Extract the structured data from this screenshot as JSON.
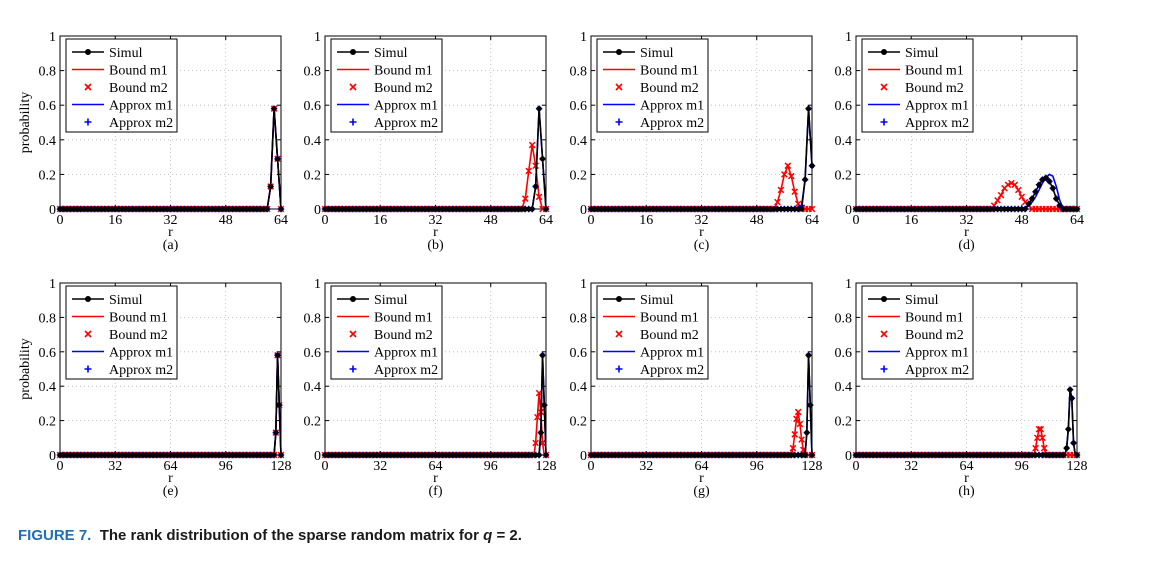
{
  "caption": {
    "label": "FIGURE 7.",
    "text": "The rank distribution of the sparse random matrix for",
    "q_symbol": "q",
    "q_rest": "= 2."
  },
  "ylabel": "probability",
  "xlabel": "r",
  "legend_entries": [
    {
      "label": "Simul",
      "color": "#000000",
      "style": "line-dot"
    },
    {
      "label": "Bound m1",
      "color": "#ff0000",
      "style": "line"
    },
    {
      "label": "Bound m2",
      "color": "#ff0000",
      "style": "x"
    },
    {
      "label": "Approx m1",
      "color": "#0000ff",
      "style": "line"
    },
    {
      "label": "Approx m2",
      "color": "#0000ff",
      "style": "plus"
    }
  ],
  "chart_data": [
    {
      "type": "line",
      "panel": "(a)",
      "xlim": [
        0,
        64
      ],
      "ylim": [
        0,
        1
      ],
      "xticks": [
        0,
        16,
        32,
        48,
        64
      ],
      "grid": true,
      "legend": "top-left",
      "series": [
        {
          "name": "Simul",
          "peaks": [
            [
              61,
              0.13
            ],
            [
              62,
              0.58
            ],
            [
              63,
              0.29
            ]
          ]
        },
        {
          "name": "Bound m1",
          "peaks": [
            [
              61,
              0.13
            ],
            [
              62,
              0.58
            ],
            [
              63,
              0.29
            ]
          ]
        },
        {
          "name": "Bound m2",
          "peaks": [
            [
              61,
              0.13
            ],
            [
              62,
              0.58
            ],
            [
              63,
              0.29
            ]
          ]
        },
        {
          "name": "Approx m1",
          "peaks": [
            [
              61,
              0.13
            ],
            [
              62,
              0.58
            ],
            [
              63,
              0.29
            ]
          ]
        },
        {
          "name": "Approx m2",
          "peaks": [
            [
              61,
              0.13
            ],
            [
              62,
              0.58
            ],
            [
              63,
              0.29
            ]
          ]
        }
      ]
    },
    {
      "type": "line",
      "panel": "(b)",
      "xlim": [
        0,
        64
      ],
      "ylim": [
        0,
        1
      ],
      "xticks": [
        0,
        16,
        32,
        48,
        64
      ],
      "grid": true,
      "legend": "top-left",
      "series": [
        {
          "name": "Simul",
          "peaks": [
            [
              61,
              0.13
            ],
            [
              62,
              0.58
            ],
            [
              63,
              0.29
            ]
          ]
        },
        {
          "name": "Bound m1",
          "peaks": [
            [
              58,
              0.06
            ],
            [
              59,
              0.22
            ],
            [
              60,
              0.37
            ],
            [
              61,
              0.25
            ],
            [
              62,
              0.07
            ]
          ]
        },
        {
          "name": "Bound m2",
          "peaks": [
            [
              58,
              0.06
            ],
            [
              59,
              0.22
            ],
            [
              60,
              0.37
            ],
            [
              61,
              0.25
            ],
            [
              62,
              0.07
            ]
          ]
        },
        {
          "name": "Approx m1",
          "peaks": [
            [
              61,
              0.13
            ],
            [
              62,
              0.58
            ],
            [
              63,
              0.29
            ]
          ]
        },
        {
          "name": "Approx m2",
          "peaks": [
            [
              61,
              0.13
            ],
            [
              62,
              0.58
            ],
            [
              63,
              0.29
            ]
          ]
        }
      ]
    },
    {
      "type": "line",
      "panel": "(c)",
      "xlim": [
        0,
        64
      ],
      "ylim": [
        0,
        1
      ],
      "xticks": [
        0,
        16,
        32,
        48,
        64
      ],
      "grid": true,
      "legend": "top-left",
      "series": [
        {
          "name": "Simul",
          "peaks": [
            [
              62,
              0.17
            ],
            [
              63,
              0.58
            ],
            [
              64,
              0.25
            ]
          ]
        },
        {
          "name": "Bound m1",
          "peaks": [
            [
              54,
              0.04
            ],
            [
              55,
              0.11
            ],
            [
              56,
              0.2
            ],
            [
              57,
              0.25
            ],
            [
              58,
              0.19
            ],
            [
              59,
              0.1
            ],
            [
              60,
              0.03
            ]
          ]
        },
        {
          "name": "Bound m2",
          "peaks": [
            [
              54,
              0.04
            ],
            [
              55,
              0.11
            ],
            [
              56,
              0.2
            ],
            [
              57,
              0.25
            ],
            [
              58,
              0.19
            ],
            [
              59,
              0.1
            ],
            [
              60,
              0.03
            ]
          ]
        },
        {
          "name": "Approx m1",
          "peaks": [
            [
              61,
              0.02
            ],
            [
              62,
              0.17
            ],
            [
              63,
              0.58
            ],
            [
              64,
              0.25
            ]
          ]
        },
        {
          "name": "Approx m2",
          "peaks": [
            [
              61,
              0.02
            ],
            [
              62,
              0.17
            ],
            [
              63,
              0.58
            ],
            [
              64,
              0.25
            ]
          ]
        }
      ]
    },
    {
      "type": "line",
      "panel": "(d)",
      "xlim": [
        0,
        64
      ],
      "ylim": [
        0,
        1
      ],
      "xticks": [
        0,
        16,
        32,
        48,
        64
      ],
      "grid": true,
      "legend": "top-left",
      "series": [
        {
          "name": "Simul",
          "peaks": [
            [
              50,
              0.03
            ],
            [
              51,
              0.06
            ],
            [
              52,
              0.1
            ],
            [
              53,
              0.14
            ],
            [
              54,
              0.17
            ],
            [
              55,
              0.18
            ],
            [
              56,
              0.16
            ],
            [
              57,
              0.12
            ],
            [
              58,
              0.06
            ],
            [
              59,
              0.02
            ]
          ]
        },
        {
          "name": "Bound m1",
          "peaks": [
            [
              40,
              0.02
            ],
            [
              41,
              0.05
            ],
            [
              42,
              0.08
            ],
            [
              43,
              0.12
            ],
            [
              44,
              0.14
            ],
            [
              45,
              0.15
            ],
            [
              46,
              0.14
            ],
            [
              47,
              0.11
            ],
            [
              48,
              0.07
            ],
            [
              49,
              0.04
            ],
            [
              50,
              0.02
            ]
          ]
        },
        {
          "name": "Bound m2",
          "peaks": [
            [
              40,
              0.02
            ],
            [
              41,
              0.05
            ],
            [
              42,
              0.08
            ],
            [
              43,
              0.12
            ],
            [
              44,
              0.14
            ],
            [
              45,
              0.15
            ],
            [
              46,
              0.14
            ],
            [
              47,
              0.11
            ],
            [
              48,
              0.07
            ],
            [
              49,
              0.04
            ],
            [
              50,
              0.02
            ]
          ]
        },
        {
          "name": "Approx m1",
          "peaks": [
            [
              50,
              0.02
            ],
            [
              51,
              0.04
            ],
            [
              52,
              0.07
            ],
            [
              53,
              0.11
            ],
            [
              54,
              0.15
            ],
            [
              55,
              0.18
            ],
            [
              56,
              0.2
            ],
            [
              57,
              0.19
            ],
            [
              58,
              0.13
            ],
            [
              59,
              0.05
            ]
          ]
        },
        {
          "name": "Approx m2",
          "peaks": [
            [
              50,
              0.03
            ],
            [
              51,
              0.06
            ],
            [
              52,
              0.1
            ],
            [
              53,
              0.14
            ],
            [
              54,
              0.17
            ],
            [
              55,
              0.18
            ],
            [
              56,
              0.16
            ],
            [
              57,
              0.12
            ],
            [
              58,
              0.06
            ],
            [
              59,
              0.02
            ]
          ]
        }
      ]
    },
    {
      "type": "line",
      "panel": "(e)",
      "xlim": [
        0,
        128
      ],
      "ylim": [
        0,
        1
      ],
      "xticks": [
        0,
        32,
        64,
        96,
        128
      ],
      "grid": true,
      "legend": "top-left",
      "series": [
        {
          "name": "Simul",
          "peaks": [
            [
              125,
              0.13
            ],
            [
              126,
              0.58
            ],
            [
              127,
              0.29
            ]
          ]
        },
        {
          "name": "Bound m1",
          "peaks": [
            [
              125,
              0.13
            ],
            [
              126,
              0.58
            ],
            [
              127,
              0.29
            ]
          ]
        },
        {
          "name": "Bound m2",
          "peaks": [
            [
              125,
              0.13
            ],
            [
              126,
              0.58
            ],
            [
              127,
              0.29
            ]
          ]
        },
        {
          "name": "Approx m1",
          "peaks": [
            [
              125,
              0.13
            ],
            [
              126,
              0.58
            ],
            [
              127,
              0.29
            ]
          ]
        },
        {
          "name": "Approx m2",
          "peaks": [
            [
              125,
              0.13
            ],
            [
              126,
              0.58
            ],
            [
              127,
              0.29
            ]
          ]
        }
      ]
    },
    {
      "type": "line",
      "panel": "(f)",
      "xlim": [
        0,
        128
      ],
      "ylim": [
        0,
        1
      ],
      "xticks": [
        0,
        32,
        64,
        96,
        128
      ],
      "grid": true,
      "legend": "top-left",
      "series": [
        {
          "name": "Simul",
          "peaks": [
            [
              125,
              0.13
            ],
            [
              126,
              0.58
            ],
            [
              127,
              0.29
            ]
          ]
        },
        {
          "name": "Bound m1",
          "peaks": [
            [
              122,
              0.07
            ],
            [
              123,
              0.22
            ],
            [
              124,
              0.36
            ],
            [
              125,
              0.25
            ],
            [
              126,
              0.07
            ]
          ]
        },
        {
          "name": "Bound m2",
          "peaks": [
            [
              122,
              0.07
            ],
            [
              123,
              0.22
            ],
            [
              124,
              0.36
            ],
            [
              125,
              0.25
            ],
            [
              126,
              0.07
            ]
          ]
        },
        {
          "name": "Approx m1",
          "peaks": [
            [
              125,
              0.13
            ],
            [
              126,
              0.58
            ],
            [
              127,
              0.29
            ]
          ]
        },
        {
          "name": "Approx m2",
          "peaks": [
            [
              125,
              0.13
            ],
            [
              126,
              0.58
            ],
            [
              127,
              0.29
            ]
          ]
        }
      ]
    },
    {
      "type": "line",
      "panel": "(g)",
      "xlim": [
        0,
        128
      ],
      "ylim": [
        0,
        1
      ],
      "xticks": [
        0,
        32,
        64,
        96,
        128
      ],
      "grid": true,
      "legend": "top-left",
      "series": [
        {
          "name": "Simul",
          "peaks": [
            [
              125,
              0.13
            ],
            [
              126,
              0.58
            ],
            [
              127,
              0.29
            ]
          ]
        },
        {
          "name": "Bound m1",
          "peaks": [
            [
              117,
              0.04
            ],
            [
              118,
              0.12
            ],
            [
              119,
              0.21
            ],
            [
              120,
              0.25
            ],
            [
              121,
              0.18
            ],
            [
              122,
              0.09
            ],
            [
              123,
              0.03
            ]
          ]
        },
        {
          "name": "Bound m2",
          "peaks": [
            [
              117,
              0.04
            ],
            [
              118,
              0.12
            ],
            [
              119,
              0.21
            ],
            [
              120,
              0.25
            ],
            [
              121,
              0.18
            ],
            [
              122,
              0.09
            ],
            [
              123,
              0.03
            ]
          ]
        },
        {
          "name": "Approx m1",
          "peaks": [
            [
              125,
              0.13
            ],
            [
              126,
              0.58
            ],
            [
              127,
              0.29
            ]
          ]
        },
        {
          "name": "Approx m2",
          "peaks": [
            [
              125,
              0.13
            ],
            [
              126,
              0.58
            ],
            [
              127,
              0.29
            ]
          ]
        }
      ]
    },
    {
      "type": "line",
      "panel": "(h)",
      "xlim": [
        0,
        128
      ],
      "ylim": [
        0,
        1
      ],
      "xticks": [
        0,
        32,
        64,
        96,
        128
      ],
      "grid": true,
      "legend": "top-left",
      "series": [
        {
          "name": "Simul",
          "peaks": [
            [
              122,
              0.04
            ],
            [
              123,
              0.15
            ],
            [
              124,
              0.38
            ],
            [
              125,
              0.33
            ],
            [
              126,
              0.07
            ]
          ]
        },
        {
          "name": "Bound m1",
          "peaks": [
            [
              104,
              0.04
            ],
            [
              105,
              0.1
            ],
            [
              106,
              0.15
            ],
            [
              107,
              0.15
            ],
            [
              108,
              0.1
            ],
            [
              109,
              0.04
            ]
          ]
        },
        {
          "name": "Bound m2",
          "peaks": [
            [
              104,
              0.04
            ],
            [
              105,
              0.1
            ],
            [
              106,
              0.15
            ],
            [
              107,
              0.15
            ],
            [
              108,
              0.1
            ],
            [
              109,
              0.04
            ]
          ]
        },
        {
          "name": "Approx m1",
          "peaks": [
            [
              122,
              0.04
            ],
            [
              123,
              0.16
            ],
            [
              124,
              0.39
            ],
            [
              125,
              0.32
            ],
            [
              126,
              0.07
            ]
          ]
        },
        {
          "name": "Approx m2",
          "peaks": [
            [
              122,
              0.04
            ],
            [
              123,
              0.15
            ],
            [
              124,
              0.38
            ],
            [
              125,
              0.33
            ],
            [
              126,
              0.07
            ]
          ]
        }
      ]
    }
  ]
}
